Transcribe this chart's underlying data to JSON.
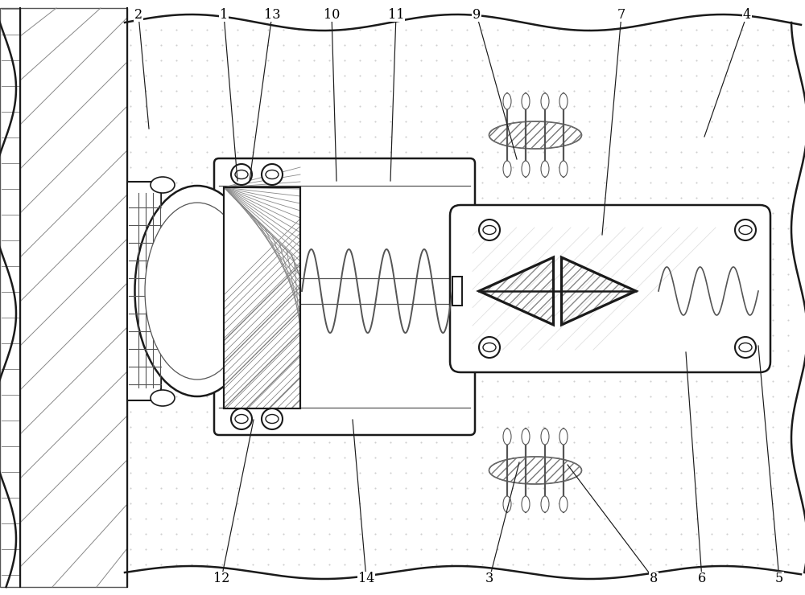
{
  "fig_w": 10.0,
  "fig_h": 7.4,
  "lc": "#555555",
  "dc": "#1a1a1a",
  "labels": {
    "1": {
      "text": [
        2.78,
        7.22
      ],
      "target": [
        2.95,
        5.15
      ]
    },
    "2": {
      "text": [
        1.72,
        7.22
      ],
      "target": [
        1.85,
        5.8
      ]
    },
    "3": {
      "text": [
        6.08,
        0.2
      ],
      "target": [
        6.45,
        1.65
      ]
    },
    "4": {
      "text": [
        9.28,
        7.22
      ],
      "target": [
        8.75,
        5.7
      ]
    },
    "5": {
      "text": [
        9.68,
        0.2
      ],
      "target": [
        9.42,
        3.1
      ]
    },
    "6": {
      "text": [
        8.72,
        0.2
      ],
      "target": [
        8.52,
        3.02
      ]
    },
    "7": {
      "text": [
        7.72,
        7.22
      ],
      "target": [
        7.48,
        4.48
      ]
    },
    "8": {
      "text": [
        8.12,
        0.2
      ],
      "target": [
        7.05,
        1.62
      ]
    },
    "9": {
      "text": [
        5.92,
        7.22
      ],
      "target": [
        6.42,
        5.42
      ]
    },
    "10": {
      "text": [
        4.12,
        7.22
      ],
      "target": [
        4.18,
        5.15
      ]
    },
    "11": {
      "text": [
        4.92,
        7.22
      ],
      "target": [
        4.85,
        5.15
      ]
    },
    "12": {
      "text": [
        2.75,
        0.2
      ],
      "target": [
        3.15,
        2.18
      ]
    },
    "13": {
      "text": [
        3.38,
        7.22
      ],
      "target": [
        3.1,
        5.15
      ]
    },
    "14": {
      "text": [
        4.55,
        0.2
      ],
      "target": [
        4.38,
        2.18
      ]
    }
  }
}
